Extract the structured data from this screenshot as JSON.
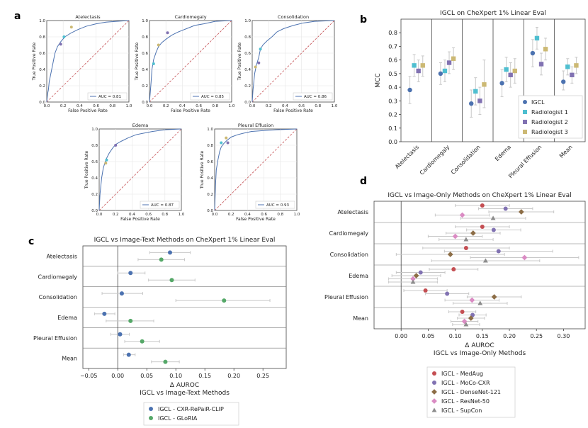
{
  "panel_labels": [
    "a",
    "b",
    "c",
    "d"
  ],
  "colors": {
    "roc": "#4c72b0",
    "diag": "#c44e52",
    "rad1": "#4fbfd0",
    "rad2": "#8172b2",
    "rad3": "#ccb974",
    "cxr": "#4c72b0",
    "gloria": "#55a868",
    "medaug": "#c44e52",
    "moco": "#8172b2",
    "densenet": "#8c6d46",
    "resnet": "#da8bc3",
    "supcon": "#8c8c8c",
    "errbar": "#c8c8c8",
    "grid": "#e6e6e6"
  },
  "chart_data": [
    {
      "type": "line",
      "panel": "a",
      "xlabel": "False Positive Rate",
      "ylabel": "True Positive Rate",
      "xlim": [
        0,
        1
      ],
      "ylim": [
        0,
        1
      ],
      "ticks": [
        "0.0",
        "0.2",
        "0.4",
        "0.6",
        "0.8",
        "1.0"
      ],
      "subplots": [
        {
          "title": "Atelectasis",
          "auc_label": "AUC = 0.81",
          "roc": [
            [
              0,
              0
            ],
            [
              0.01,
              0.1
            ],
            [
              0.02,
              0.15
            ],
            [
              0.03,
              0.25
            ],
            [
              0.05,
              0.35
            ],
            [
              0.08,
              0.5
            ],
            [
              0.1,
              0.6
            ],
            [
              0.13,
              0.68
            ],
            [
              0.17,
              0.74
            ],
            [
              0.22,
              0.8
            ],
            [
              0.3,
              0.85
            ],
            [
              0.38,
              0.89
            ],
            [
              0.48,
              0.93
            ],
            [
              0.6,
              0.96
            ],
            [
              0.72,
              0.98
            ],
            [
              0.85,
              0.99
            ],
            [
              1,
              1
            ]
          ],
          "points": [
            [
              0.17,
              0.71,
              "rad2"
            ],
            [
              0.21,
              0.8,
              "rad1"
            ],
            [
              0.3,
              0.92,
              "rad3"
            ]
          ]
        },
        {
          "title": "Cardiomegaly",
          "auc_label": "AUC = 0.85",
          "roc": [
            [
              0,
              0
            ],
            [
              0.01,
              0.12
            ],
            [
              0.02,
              0.25
            ],
            [
              0.03,
              0.4
            ],
            [
              0.05,
              0.52
            ],
            [
              0.08,
              0.61
            ],
            [
              0.11,
              0.68
            ],
            [
              0.15,
              0.73
            ],
            [
              0.2,
              0.77
            ],
            [
              0.27,
              0.82
            ],
            [
              0.35,
              0.86
            ],
            [
              0.45,
              0.9
            ],
            [
              0.55,
              0.94
            ],
            [
              0.66,
              0.96
            ],
            [
              0.8,
              0.99
            ],
            [
              1,
              1
            ]
          ],
          "points": [
            [
              0.05,
              0.47,
              "rad1"
            ],
            [
              0.11,
              0.7,
              "rad3"
            ],
            [
              0.22,
              0.85,
              "rad2"
            ]
          ]
        },
        {
          "title": "Consolidation",
          "auc_label": "AUC = 0.86",
          "roc": [
            [
              0,
              0
            ],
            [
              0.01,
              0.15
            ],
            [
              0.03,
              0.35
            ],
            [
              0.05,
              0.45
            ],
            [
              0.08,
              0.55
            ],
            [
              0.1,
              0.65
            ],
            [
              0.13,
              0.7
            ],
            [
              0.18,
              0.75
            ],
            [
              0.24,
              0.8
            ],
            [
              0.3,
              0.86
            ],
            [
              0.38,
              0.9
            ],
            [
              0.5,
              0.94
            ],
            [
              0.62,
              0.97
            ],
            [
              0.76,
              0.99
            ],
            [
              1,
              1
            ]
          ],
          "points": [
            [
              0.04,
              0.43,
              "rad3"
            ],
            [
              0.08,
              0.48,
              "rad2"
            ],
            [
              0.1,
              0.65,
              "rad1"
            ]
          ]
        },
        {
          "title": "Edema",
          "auc_label": "AUC = 0.87",
          "roc": [
            [
              0,
              0
            ],
            [
              0.01,
              0.2
            ],
            [
              0.03,
              0.4
            ],
            [
              0.05,
              0.52
            ],
            [
              0.08,
              0.62
            ],
            [
              0.12,
              0.7
            ],
            [
              0.16,
              0.76
            ],
            [
              0.2,
              0.81
            ],
            [
              0.27,
              0.85
            ],
            [
              0.35,
              0.89
            ],
            [
              0.45,
              0.93
            ],
            [
              0.55,
              0.95
            ],
            [
              0.65,
              0.97
            ],
            [
              0.8,
              0.99
            ],
            [
              1,
              1
            ]
          ],
          "points": [
            [
              0.08,
              0.58,
              "rad3"
            ],
            [
              0.09,
              0.62,
              "rad1"
            ],
            [
              0.2,
              0.8,
              "rad2"
            ]
          ]
        },
        {
          "title": "Pleural Effusion",
          "auc_label": "AUC = 0.93",
          "roc": [
            [
              0,
              0
            ],
            [
              0.01,
              0.3
            ],
            [
              0.02,
              0.5
            ],
            [
              0.04,
              0.62
            ],
            [
              0.06,
              0.72
            ],
            [
              0.08,
              0.78
            ],
            [
              0.11,
              0.82
            ],
            [
              0.15,
              0.86
            ],
            [
              0.2,
              0.9
            ],
            [
              0.28,
              0.93
            ],
            [
              0.36,
              0.95
            ],
            [
              0.45,
              0.97
            ],
            [
              0.6,
              0.98
            ],
            [
              0.75,
              0.99
            ],
            [
              1,
              1
            ]
          ],
          "points": [
            [
              0.08,
              0.83,
              "rad1"
            ],
            [
              0.16,
              0.83,
              "rad2"
            ],
            [
              0.14,
              0.89,
              "rad3"
            ]
          ]
        }
      ]
    },
    {
      "type": "scatter",
      "panel": "b",
      "title": "IGCL on CheXpert 1% Linear Eval",
      "ylabel": "MCC",
      "ylim": [
        0,
        0.9
      ],
      "yticks": [
        "0.0",
        "0.1",
        "0.2",
        "0.3",
        "0.4",
        "0.5",
        "0.6",
        "0.7",
        "0.8"
      ],
      "categories": [
        "Atelectasis",
        "Cardiomegaly",
        "Consolidation",
        "Edema",
        "Pleural Effusion",
        "Mean"
      ],
      "series": [
        {
          "name": "IGCL",
          "color": "cxr",
          "marker": "circle",
          "values": [
            0.38,
            0.5,
            0.28,
            0.43,
            0.65,
            0.44
          ],
          "lo": [
            0.28,
            0.42,
            0.18,
            0.33,
            0.55,
            0.38
          ],
          "hi": [
            0.48,
            0.58,
            0.38,
            0.53,
            0.75,
            0.52
          ]
        },
        {
          "name": "Radiologist 1",
          "color": "rad1",
          "marker": "square",
          "values": [
            0.56,
            0.52,
            0.37,
            0.53,
            0.76,
            0.55
          ],
          "lo": [
            0.48,
            0.44,
            0.27,
            0.44,
            0.68,
            0.49
          ],
          "hi": [
            0.64,
            0.6,
            0.47,
            0.62,
            0.84,
            0.61
          ]
        },
        {
          "name": "Radiologist 2",
          "color": "rad2",
          "marker": "square",
          "values": [
            0.52,
            0.58,
            0.3,
            0.49,
            0.57,
            0.49
          ],
          "lo": [
            0.44,
            0.5,
            0.2,
            0.4,
            0.49,
            0.43
          ],
          "hi": [
            0.6,
            0.66,
            0.4,
            0.58,
            0.65,
            0.55
          ]
        },
        {
          "name": "Radiologist 3",
          "color": "rad3",
          "marker": "square",
          "values": [
            0.56,
            0.61,
            0.42,
            0.52,
            0.68,
            0.56
          ],
          "lo": [
            0.48,
            0.53,
            0.25,
            0.43,
            0.6,
            0.5
          ],
          "hi": [
            0.63,
            0.69,
            0.6,
            0.61,
            0.76,
            0.62
          ]
        }
      ],
      "legend": "bottom-right"
    },
    {
      "type": "scatter",
      "panel": "c",
      "title": "IGCL vs Image-Text Methods on CheXpert 1% Linear Eval",
      "xlabel": "Δ AUROC",
      "xlabel2": "IGCL vs Image-Text Methods",
      "xlim": [
        -0.06,
        0.29
      ],
      "xticks": [
        "−0.05",
        "0.00",
        "0.05",
        "0.10",
        "0.15",
        "0.20",
        "0.25"
      ],
      "categories": [
        "Atelectasis",
        "Cardiomegaly",
        "Consolidation",
        "Edema",
        "Pleural Effusion",
        "Mean"
      ],
      "series": [
        {
          "name": "IGCL - CXR-RePaiR-CLIP",
          "color": "cxr",
          "values": [
            0.09,
            0.022,
            0.007,
            -0.023,
            0.004,
            0.019
          ],
          "lo": [
            0.055,
            0.0,
            -0.027,
            -0.04,
            -0.012,
            0.01
          ],
          "hi": [
            0.125,
            0.047,
            0.043,
            -0.005,
            0.02,
            0.03
          ]
        },
        {
          "name": "IGCL - GLoRIA",
          "color": "gloria",
          "values": [
            0.075,
            0.093,
            0.183,
            0.022,
            0.042,
            0.082
          ],
          "lo": [
            0.035,
            0.053,
            0.1,
            -0.02,
            0.012,
            0.058
          ],
          "hi": [
            0.115,
            0.133,
            0.262,
            0.062,
            0.072,
            0.106
          ]
        }
      ],
      "legend": "below"
    },
    {
      "type": "scatter",
      "panel": "d",
      "title": "IGCL vs Image-Only Methods on CheXpert 1% Linear Eval",
      "xlabel": "Δ AUROC",
      "xlabel2": "IGCL vs Image-Only Methods",
      "xlim": [
        -0.05,
        0.34
      ],
      "xticks": [
        "0.00",
        "0.05",
        "0.10",
        "0.15",
        "0.20",
        "0.25",
        "0.30"
      ],
      "categories": [
        "Atelectasis",
        "Cardiomegaly",
        "Consolidation",
        "Edema",
        "Pleural Effusion",
        "Mean"
      ],
      "series": [
        {
          "name": "IGCL - MedAug",
          "color": "medaug",
          "marker": "circle",
          "values": [
            0.15,
            0.15,
            0.12,
            0.097,
            0.045,
            0.113
          ],
          "err": [
            0.05,
            0.05,
            0.08,
            0.045,
            0.04,
            0.025
          ]
        },
        {
          "name": "IGCL - MoCo-CXR",
          "color": "moco",
          "marker": "circle",
          "values": [
            0.193,
            0.171,
            0.18,
            0.036,
            0.085,
            0.132
          ],
          "err": [
            0.05,
            0.05,
            0.1,
            0.045,
            0.04,
            0.025
          ]
        },
        {
          "name": "IGCL - DenseNet-121",
          "color": "densenet",
          "marker": "diamond",
          "values": [
            0.222,
            0.133,
            0.091,
            0.028,
            0.172,
            0.129
          ],
          "err": [
            0.06,
            0.05,
            0.1,
            0.045,
            0.05,
            0.025
          ]
        },
        {
          "name": "IGCL - ResNet-50",
          "color": "resnet",
          "marker": "diamond",
          "values": [
            0.113,
            0.1,
            0.228,
            0.022,
            0.131,
            0.117
          ],
          "err": [
            0.05,
            0.05,
            0.1,
            0.045,
            0.05,
            0.025
          ]
        },
        {
          "name": "IGCL - SupCon",
          "color": "supcon",
          "marker": "triangle",
          "values": [
            0.17,
            0.12,
            0.156,
            0.022,
            0.146,
            0.12
          ],
          "err": [
            0.06,
            0.05,
            0.1,
            0.045,
            0.05,
            0.025
          ]
        }
      ],
      "legend": "below"
    }
  ]
}
